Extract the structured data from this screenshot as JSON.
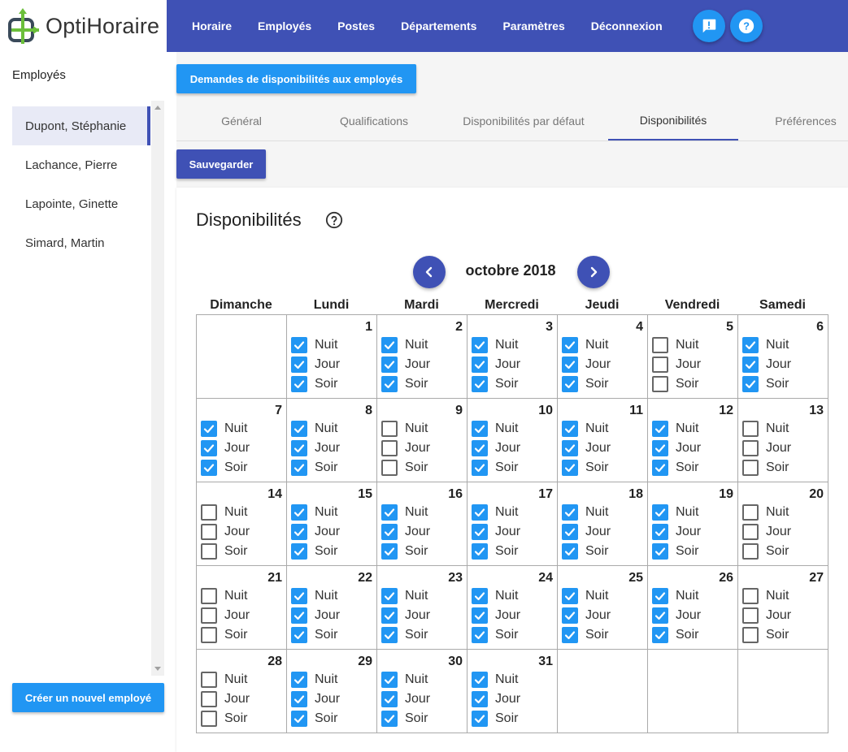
{
  "app": {
    "logo_text": "OptiHoraire"
  },
  "nav": {
    "items": [
      "Horaire",
      "Employés",
      "Postes",
      "Départements",
      "Paramètres",
      "Déconnexion"
    ],
    "feedback_icon": "feedback-icon",
    "help_icon": "help-icon"
  },
  "sidebar": {
    "title": "Employés",
    "employees": [
      "Dupont, Stéphanie",
      "Lachance, Pierre",
      "Lapointe, Ginette",
      "Simard, Martin"
    ],
    "active_index": 0,
    "create_button": "Créer un nouvel employé"
  },
  "main": {
    "request_button": "Demandes de disponibilités aux employés",
    "tabs": [
      "Général",
      "Qualifications",
      "Disponibilités par défaut",
      "Disponibilités",
      "Préférences"
    ],
    "active_tab": 3,
    "save_button": "Sauvegarder"
  },
  "calendar": {
    "title": "Disponibilités",
    "month_label": "octobre 2018",
    "weekdays": [
      "Dimanche",
      "Lundi",
      "Mardi",
      "Mercredi",
      "Jeudi",
      "Vendredi",
      "Samedi"
    ],
    "shift_labels": [
      "Nuit",
      "Jour",
      "Soir"
    ],
    "start_offset": 1,
    "days": [
      {
        "day": 1,
        "checks": [
          true,
          true,
          true
        ]
      },
      {
        "day": 2,
        "checks": [
          true,
          true,
          true
        ]
      },
      {
        "day": 3,
        "checks": [
          true,
          true,
          true
        ]
      },
      {
        "day": 4,
        "checks": [
          true,
          true,
          true
        ]
      },
      {
        "day": 5,
        "checks": [
          false,
          false,
          false
        ]
      },
      {
        "day": 6,
        "checks": [
          true,
          true,
          true
        ]
      },
      {
        "day": 7,
        "checks": [
          true,
          true,
          true
        ]
      },
      {
        "day": 8,
        "checks": [
          true,
          true,
          true
        ]
      },
      {
        "day": 9,
        "checks": [
          false,
          false,
          false
        ]
      },
      {
        "day": 10,
        "checks": [
          true,
          true,
          true
        ]
      },
      {
        "day": 11,
        "checks": [
          true,
          true,
          true
        ]
      },
      {
        "day": 12,
        "checks": [
          true,
          true,
          true
        ]
      },
      {
        "day": 13,
        "checks": [
          false,
          false,
          false
        ]
      },
      {
        "day": 14,
        "checks": [
          false,
          false,
          false
        ]
      },
      {
        "day": 15,
        "checks": [
          true,
          true,
          true
        ]
      },
      {
        "day": 16,
        "checks": [
          true,
          true,
          true
        ]
      },
      {
        "day": 17,
        "checks": [
          true,
          true,
          true
        ]
      },
      {
        "day": 18,
        "checks": [
          true,
          true,
          true
        ]
      },
      {
        "day": 19,
        "checks": [
          true,
          true,
          true
        ]
      },
      {
        "day": 20,
        "checks": [
          false,
          false,
          false
        ]
      },
      {
        "day": 21,
        "checks": [
          false,
          false,
          false
        ]
      },
      {
        "day": 22,
        "checks": [
          true,
          true,
          true
        ]
      },
      {
        "day": 23,
        "checks": [
          true,
          true,
          true
        ]
      },
      {
        "day": 24,
        "checks": [
          true,
          true,
          true
        ]
      },
      {
        "day": 25,
        "checks": [
          true,
          true,
          true
        ]
      },
      {
        "day": 26,
        "checks": [
          true,
          true,
          true
        ]
      },
      {
        "day": 27,
        "checks": [
          false,
          false,
          false
        ]
      },
      {
        "day": 28,
        "checks": [
          false,
          false,
          false
        ]
      },
      {
        "day": 29,
        "checks": [
          true,
          true,
          true
        ]
      },
      {
        "day": 30,
        "checks": [
          true,
          true,
          true
        ]
      },
      {
        "day": 31,
        "checks": [
          true,
          true,
          true
        ]
      }
    ]
  },
  "colors": {
    "primary": "#3f51b5",
    "accent": "#2196f3",
    "logo_green": "#6bbf3b",
    "logo_dark": "#3a4a5a"
  }
}
